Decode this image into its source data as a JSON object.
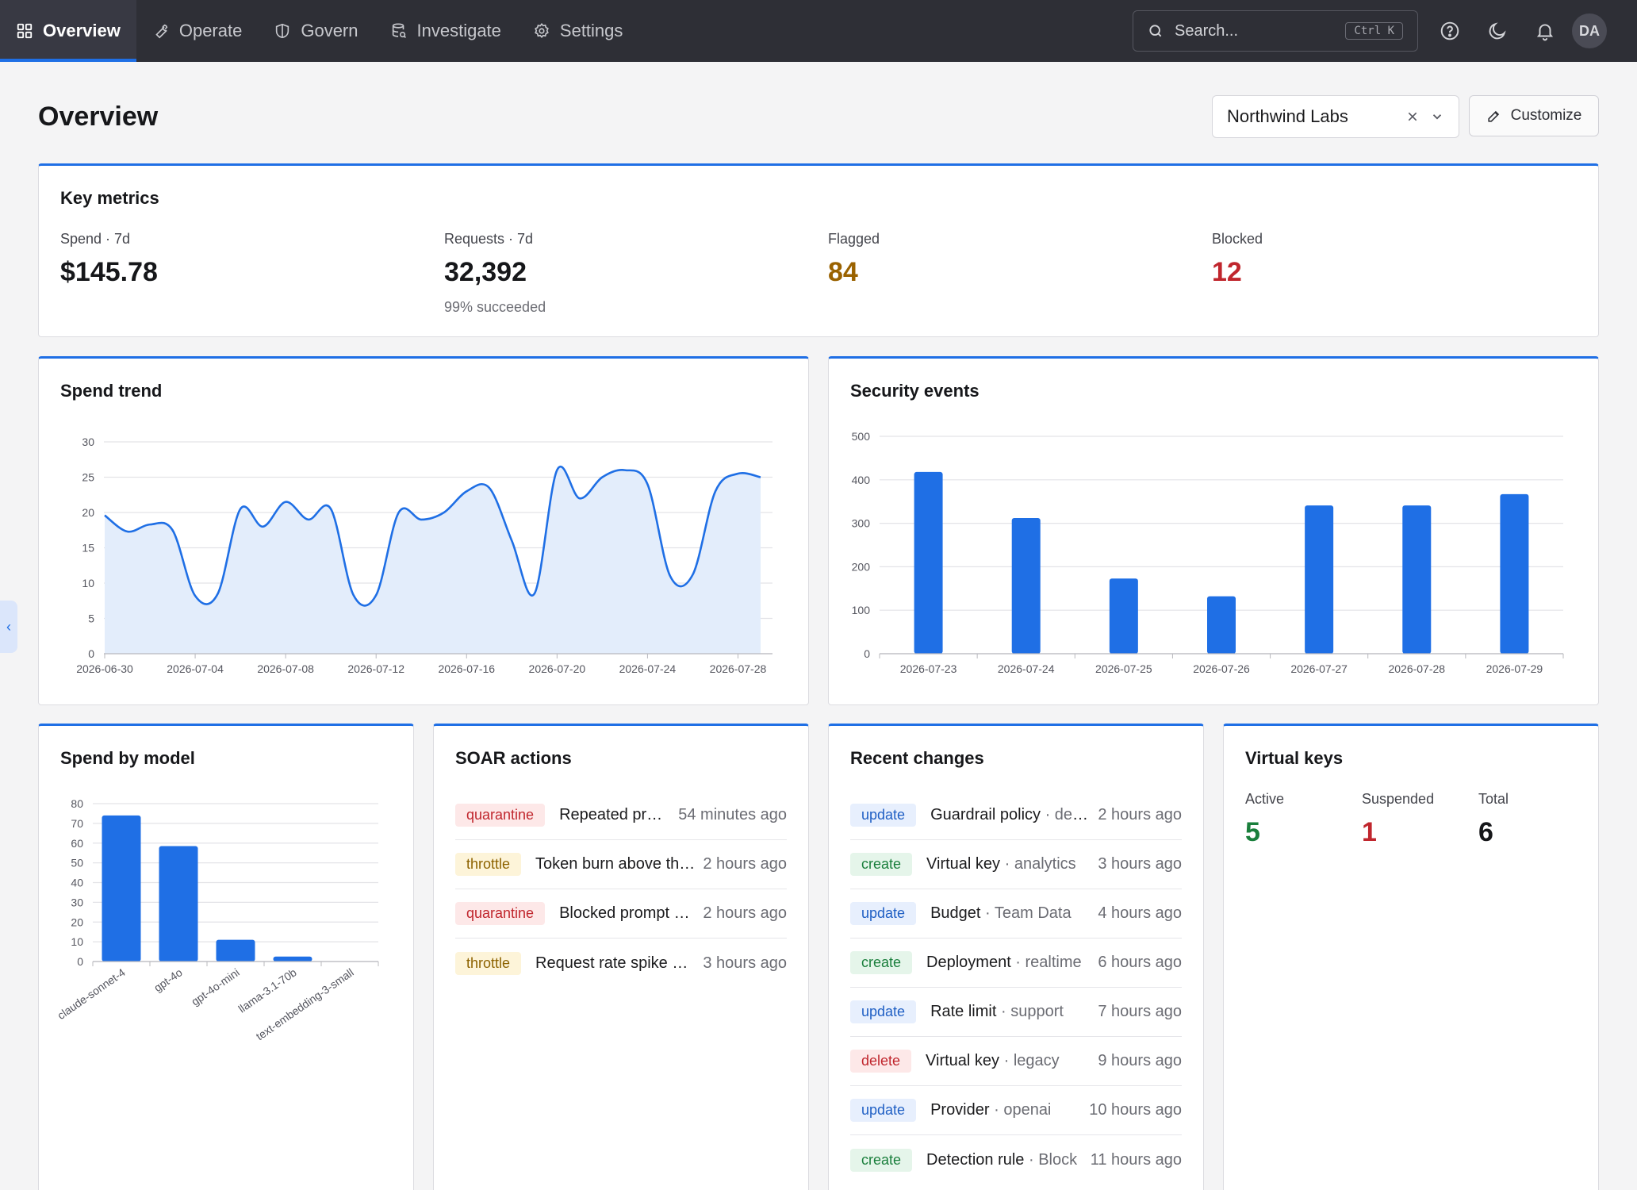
{
  "nav": {
    "items": [
      {
        "label": "Overview",
        "icon": "grid-icon",
        "active": true
      },
      {
        "label": "Operate",
        "icon": "wrench-icon"
      },
      {
        "label": "Govern",
        "icon": "shield-icon"
      },
      {
        "label": "Investigate",
        "icon": "database-search-icon"
      },
      {
        "label": "Settings",
        "icon": "gear-icon"
      }
    ],
    "search_placeholder": "Search...",
    "search_shortcut": "Ctrl K",
    "avatar_initials": "DA"
  },
  "header": {
    "title": "Overview",
    "org_selected": "Northwind Labs",
    "customize_label": "Customize"
  },
  "key_metrics": {
    "title": "Key metrics",
    "items": [
      {
        "label": "Spend · 7d",
        "value": "$145.78",
        "sub": "",
        "color": "#16171a"
      },
      {
        "label": "Requests · 7d",
        "value": "32,392",
        "sub": "99% succeeded",
        "color": "#16171a"
      },
      {
        "label": "Flagged",
        "value": "84",
        "sub": "",
        "color": "#9a6200"
      },
      {
        "label": "Blocked",
        "value": "12",
        "sub": "",
        "color": "#c0262d"
      }
    ]
  },
  "spend_trend": {
    "title": "Spend trend",
    "chart_data": {
      "type": "area",
      "y_ticks": [
        "0",
        "5",
        "10",
        "15",
        "20",
        "25",
        "30"
      ],
      "ylim": [
        0,
        30
      ],
      "x_ticks": [
        "2026-06-30",
        "2026-07-04",
        "2026-07-08",
        "2026-07-12",
        "2026-07-16",
        "2026-07-20",
        "2026-07-24",
        "2026-07-28"
      ],
      "x": [
        "2026-06-30",
        "2026-07-01",
        "2026-07-02",
        "2026-07-03",
        "2026-07-04",
        "2026-07-05",
        "2026-07-06",
        "2026-07-07",
        "2026-07-08",
        "2026-07-09",
        "2026-07-10",
        "2026-07-11",
        "2026-07-12",
        "2026-07-13",
        "2026-07-14",
        "2026-07-15",
        "2026-07-16",
        "2026-07-17",
        "2026-07-18",
        "2026-07-19",
        "2026-07-20",
        "2026-07-21",
        "2026-07-22",
        "2026-07-23",
        "2026-07-24",
        "2026-07-25",
        "2026-07-26",
        "2026-07-27",
        "2026-07-28",
        "2026-07-29"
      ],
      "values": [
        19.6,
        17.3,
        18.3,
        17.5,
        8.2,
        8.5,
        20.5,
        18.0,
        21.5,
        19.0,
        20.5,
        8.3,
        8.3,
        20.0,
        19.0,
        20.0,
        23.0,
        23.5,
        16.0,
        8.5,
        26.0,
        22.0,
        25.0,
        26.0,
        24.0,
        11.0,
        11.2,
        23.0,
        25.5,
        25.0
      ],
      "line_color": "#1f6fe5",
      "fill_color": "#e3edfb"
    }
  },
  "security_events": {
    "title": "Security events",
    "chart_data": {
      "type": "bar",
      "y_ticks": [
        "0",
        "100",
        "200",
        "300",
        "400",
        "500"
      ],
      "ylim": [
        0,
        500
      ],
      "categories": [
        "2026-07-23",
        "2026-07-24",
        "2026-07-25",
        "2026-07-26",
        "2026-07-27",
        "2026-07-28",
        "2026-07-29"
      ],
      "values": [
        418,
        312,
        173,
        132,
        341,
        341,
        367
      ],
      "bar_color": "#1f6fe5"
    }
  },
  "spend_by_model": {
    "title": "Spend by model",
    "chart_data": {
      "type": "bar",
      "y_ticks": [
        "0",
        "10",
        "20",
        "30",
        "40",
        "50",
        "60",
        "70",
        "80"
      ],
      "ylim": [
        0,
        80
      ],
      "categories": [
        "claude-sonnet-4",
        "gpt-4o",
        "gpt-4o-mini",
        "llama-3.1-70b",
        "text-embedding-3-small"
      ],
      "values": [
        74,
        58.5,
        11,
        2.5,
        0
      ],
      "bar_color": "#1f6fe5"
    }
  },
  "soar_actions": {
    "title": "SOAR actions",
    "rows": [
      {
        "badge": "quarantine",
        "text": "Repeated prompt injection attempts",
        "time": "54 minutes ago"
      },
      {
        "badge": "throttle",
        "text": "Token burn above threshold",
        "time": "2 hours ago"
      },
      {
        "badge": "quarantine",
        "text": "Blocked prompt exfiltration",
        "time": "2 hours ago"
      },
      {
        "badge": "throttle",
        "text": "Request rate spike detected",
        "time": "3 hours ago"
      }
    ]
  },
  "recent_changes": {
    "title": "Recent changes",
    "rows": [
      {
        "badge": "update",
        "name": "Guardrail policy",
        "detail": " · default",
        "time": "2 hours ago"
      },
      {
        "badge": "create",
        "name": "Virtual key",
        "detail": " · analytics",
        "time": "3 hours ago"
      },
      {
        "badge": "update",
        "name": "Budget",
        "detail": " · Team Data",
        "time": "4 hours ago"
      },
      {
        "badge": "create",
        "name": "Deployment",
        "detail": " · realtime",
        "time": "6 hours ago"
      },
      {
        "badge": "update",
        "name": "Rate limit",
        "detail": " · support",
        "time": "7 hours ago"
      },
      {
        "badge": "delete",
        "name": "Virtual key",
        "detail": " · legacy",
        "time": "9 hours ago"
      },
      {
        "badge": "update",
        "name": "Provider",
        "detail": " · openai",
        "time": "10 hours ago"
      },
      {
        "badge": "create",
        "name": "Detection rule",
        "detail": " · Block",
        "time": "11 hours ago"
      }
    ]
  },
  "virtual_keys": {
    "title": "Virtual keys",
    "items": [
      {
        "label": "Active",
        "value": "5",
        "color": "#1a7f3c"
      },
      {
        "label": "Suspended",
        "value": "1",
        "color": "#c0262d"
      },
      {
        "label": "Total",
        "value": "6",
        "color": "#16171a"
      }
    ]
  }
}
